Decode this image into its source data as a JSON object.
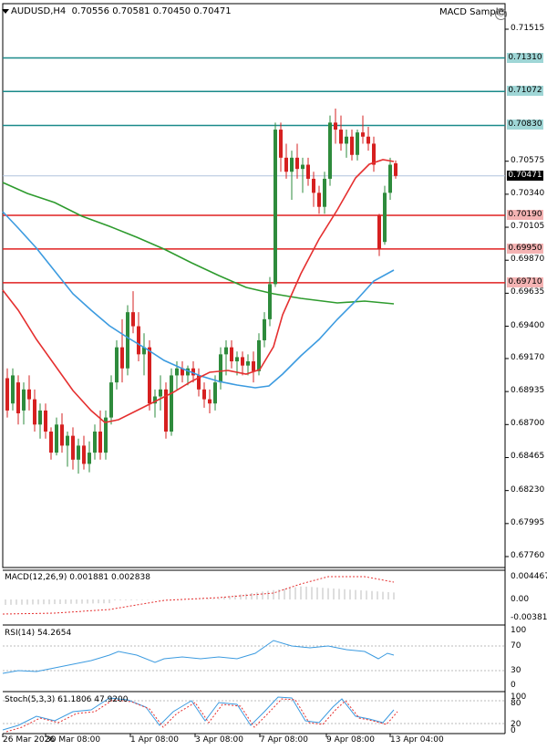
{
  "header": {
    "symbol": "AUDUSD,H4",
    "ohlc": "0.70556 0.70581 0.70450 0.70471",
    "indicator_name": "MACD Sample"
  },
  "price_labels": [
    "0.71515",
    "0.70575",
    "0.70340",
    "0.70105",
    "0.69870",
    "0.69635",
    "0.69400",
    "0.69170",
    "0.68935",
    "0.68700",
    "0.68465",
    "0.68230",
    "0.67995",
    "0.67760"
  ],
  "level_lines": [
    {
      "label": "0.71310",
      "color": "#1a8a8a"
    },
    {
      "label": "0.71072",
      "color": "#1a8a8a"
    },
    {
      "label": "0.70830",
      "color": "#1a8a8a"
    },
    {
      "label": "0.70190",
      "color": "#e02020"
    },
    {
      "label": "0.69950",
      "color": "#e02020"
    },
    {
      "label": "0.69710",
      "color": "#e02020"
    }
  ],
  "current_price": "0.70471",
  "macd": {
    "title": "MACD(12,26,9) 0.001881 0.002838",
    "labels": [
      "0.004467",
      "0.00",
      "-0.003817"
    ]
  },
  "rsi": {
    "title": "RSI(14) 54.2654",
    "labels": [
      "100",
      "70",
      "30",
      "0"
    ]
  },
  "stoch": {
    "title": "Stoch(5,3,3) 61.1806 47.9200",
    "labels": [
      "100",
      "80",
      "20",
      "0"
    ]
  },
  "time_labels": [
    "26 Mar 2026",
    "30 Mar 08:00",
    "1 Apr 08:00",
    "3 Apr 08:00",
    "7 Apr 08:00",
    "9 Apr 08:00",
    "13 Apr 04:00"
  ],
  "colors": {
    "bull": "#2e8b3c",
    "bear": "#d62020",
    "ma_fast": "#e53030",
    "ma_slow_blue": "#3c9be0",
    "ma_long_green": "#2e9b2e",
    "teal": "#1a8a8a",
    "red_level": "#e02020"
  }
}
